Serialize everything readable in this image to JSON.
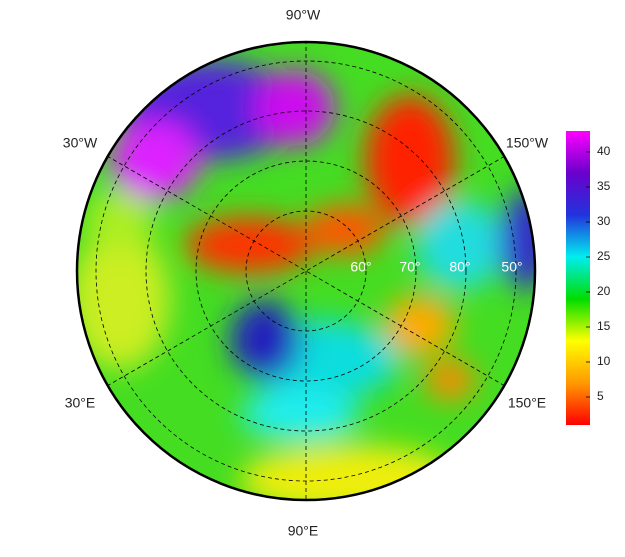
{
  "map": {
    "lon_labels": [
      "90°W",
      "30°W",
      "150°W",
      "30°E",
      "150°E",
      "90°E"
    ],
    "lat_labels": [
      "60°",
      "70°",
      "80°",
      "50°"
    ]
  },
  "colorbar": {
    "lim": [
      1,
      43
    ],
    "ticks": [
      5,
      10,
      15,
      20,
      25,
      30,
      35,
      40
    ],
    "colors": [
      "#ff0000",
      "#ff9900",
      "#ffff00",
      "#00dd00",
      "#00eeee",
      "#2233dd",
      "#6a00cc",
      "#ff00ff"
    ]
  }
}
